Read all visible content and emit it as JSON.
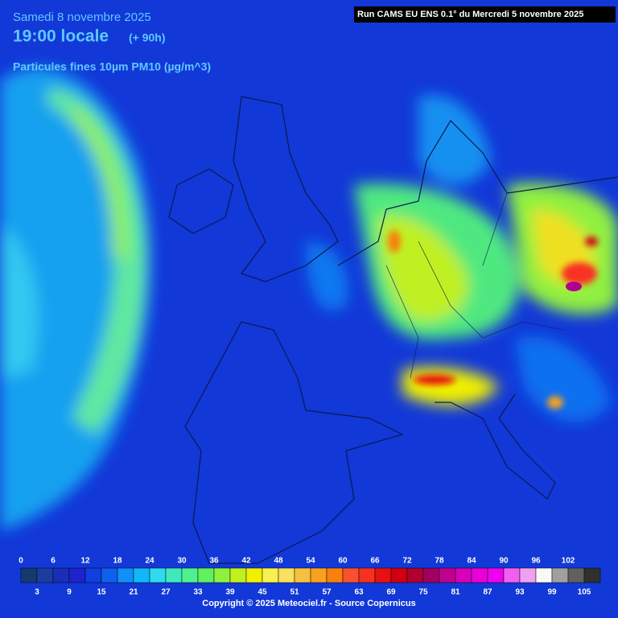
{
  "header": {
    "date": "Samedi 8 novembre 2025",
    "time": "19:00 locale",
    "lead": "(+ 90h)",
    "variable": "Particules fines 10µm PM10 (µg/m^3)",
    "run": "Run CAMS EU ENS 0.1° du Mercredi 5 novembre 2025"
  },
  "legend": {
    "colors": [
      "#163a70",
      "#1c3da0",
      "#1a2fb8",
      "#1e22d0",
      "#1040e0",
      "#1060f0",
      "#1090f8",
      "#10b8f8",
      "#30d8f0",
      "#40e8c0",
      "#50f090",
      "#60f060",
      "#90f040",
      "#c0f020",
      "#f0f000",
      "#f8f050",
      "#f8e060",
      "#f8c040",
      "#f8a020",
      "#f88010",
      "#f85030",
      "#f83020",
      "#e81010",
      "#d00010",
      "#b00030",
      "#a00060",
      "#c00090",
      "#d800b8",
      "#e800d8",
      "#f000f0",
      "#f060f0",
      "#f0a0f0",
      "#f8f8f8",
      "#a0a0a0",
      "#606060",
      "#303030"
    ],
    "top_labels": [
      0,
      6,
      12,
      18,
      24,
      30,
      36,
      42,
      48,
      54,
      60,
      66,
      72,
      78,
      84,
      90,
      96,
      102
    ],
    "bottom_labels": [
      3,
      9,
      15,
      21,
      27,
      33,
      39,
      45,
      51,
      57,
      63,
      69,
      75,
      81,
      87,
      93,
      99,
      105
    ]
  },
  "footer": {
    "copyright": "Copyright © 2025 Meteociel.fr - Source Copernicus"
  }
}
